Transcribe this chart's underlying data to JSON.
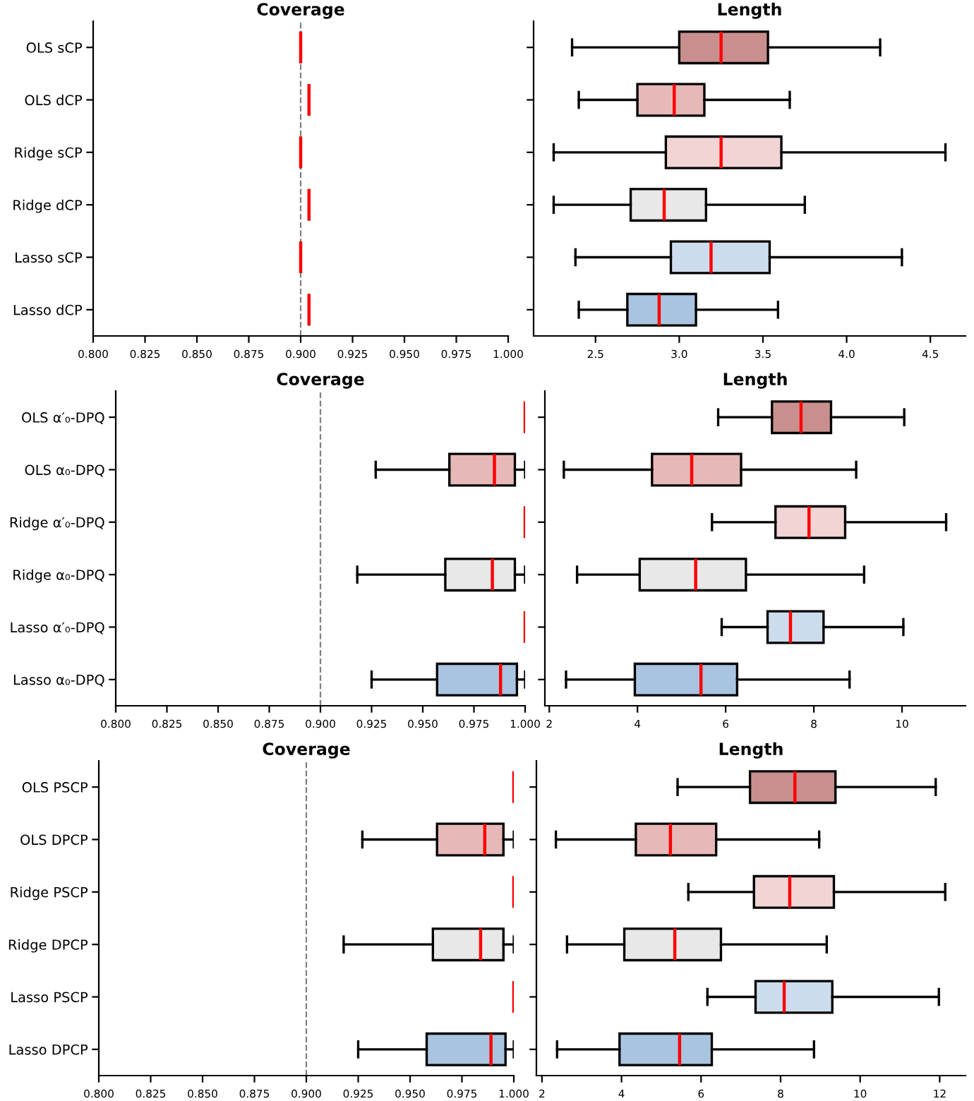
{
  "chart_data": [
    {
      "type": "box",
      "orientation": "horizontal",
      "title": "Coverage",
      "categories": [
        "OLS sCP",
        "OLS dCP",
        "Ridge sCP",
        "Ridge dCP",
        "Lasso sCP",
        "Lasso dCP"
      ],
      "colors": [
        "#000000",
        "#000000",
        "#000000",
        "#000000",
        "#000000",
        "#000000"
      ],
      "boxes": [
        {
          "low": 0.9,
          "q1": 0.9,
          "median": 0.9,
          "q3": 0.9,
          "high": 0.9
        },
        {
          "low": 0.904,
          "q1": 0.904,
          "median": 0.904,
          "q3": 0.904,
          "high": 0.904
        },
        {
          "low": 0.9,
          "q1": 0.9,
          "median": 0.9,
          "q3": 0.9,
          "high": 0.9
        },
        {
          "low": 0.904,
          "q1": 0.904,
          "median": 0.904,
          "q3": 0.904,
          "high": 0.904
        },
        {
          "low": 0.9,
          "q1": 0.9,
          "median": 0.9,
          "q3": 0.9,
          "high": 0.9
        },
        {
          "low": 0.904,
          "q1": 0.904,
          "median": 0.904,
          "q3": 0.904,
          "high": 0.904
        }
      ],
      "xlim": [
        0.8,
        1.0
      ],
      "xticks": [
        {
          "value": 0.8,
          "label": "0.800"
        },
        {
          "value": 0.825,
          "label": "0.825"
        },
        {
          "value": 0.85,
          "label": "0.850"
        },
        {
          "value": 0.875,
          "label": "0.875"
        },
        {
          "value": 0.9,
          "label": "0.900"
        },
        {
          "value": 0.925,
          "label": "0.925"
        },
        {
          "value": 0.95,
          "label": "0.950"
        },
        {
          "value": 0.975,
          "label": "0.975"
        },
        {
          "value": 1.0,
          "label": "1.000"
        }
      ],
      "ref_lines": [
        {
          "axis": "x",
          "value": 0.9,
          "color": "#808080",
          "line_style": "dashed"
        }
      ],
      "grid": false
    },
    {
      "type": "box",
      "orientation": "horizontal",
      "title": "Length",
      "categories": [
        null,
        null,
        null,
        null,
        null,
        null
      ],
      "colors": [
        "#c98f8f",
        "#e6b8b8",
        "#f2d4d4",
        "#e8e8e8",
        "#cddcec",
        "#a9c4e0"
      ],
      "boxes": [
        {
          "low": 2.36,
          "q1": 3.0,
          "median": 3.25,
          "q3": 3.53,
          "high": 4.2
        },
        {
          "low": 2.4,
          "q1": 2.75,
          "median": 2.97,
          "q3": 3.15,
          "high": 3.66
        },
        {
          "low": 2.25,
          "q1": 2.92,
          "median": 3.25,
          "q3": 3.61,
          "high": 4.59
        },
        {
          "low": 2.25,
          "q1": 2.71,
          "median": 2.91,
          "q3": 3.16,
          "high": 3.75
        },
        {
          "low": 2.38,
          "q1": 2.95,
          "median": 3.19,
          "q3": 3.54,
          "high": 4.33
        },
        {
          "low": 2.4,
          "q1": 2.69,
          "median": 2.88,
          "q3": 3.1,
          "high": 3.59
        }
      ],
      "xlim": [
        2.13,
        4.71
      ],
      "xticks": [
        2.5,
        {
          "value": 3.0,
          "label": "3.0"
        },
        3.5,
        {
          "value": 4.0,
          "label": "4.0"
        },
        4.5
      ],
      "grid": false
    },
    {
      "type": "box",
      "orientation": "horizontal",
      "title": "Coverage",
      "categories": [
        "OLS α′₀-DPQ",
        "OLS α₀-DPQ",
        "Ridge α′₀-DPQ",
        "Ridge α₀-DPQ",
        "Lasso α′₀-DPQ",
        "Lasso α₀-DPQ"
      ],
      "colors": [
        "#000000",
        "#e6b8b8",
        "#000000",
        "#e8e8e8",
        "#000000",
        "#a9c4e0"
      ],
      "boxes": [
        {
          "low": 1.0,
          "q1": 1.0,
          "median": 1.0,
          "q3": 1.0,
          "high": 1.0
        },
        {
          "low": 0.927,
          "q1": 0.963,
          "median": 0.985,
          "q3": 0.995,
          "high": 1.0
        },
        {
          "low": 1.0,
          "q1": 1.0,
          "median": 1.0,
          "q3": 1.0,
          "high": 1.0
        },
        {
          "low": 0.918,
          "q1": 0.961,
          "median": 0.984,
          "q3": 0.995,
          "high": 1.0
        },
        {
          "low": 1.0,
          "q1": 1.0,
          "median": 1.0,
          "q3": 1.0,
          "high": 1.0
        },
        {
          "low": 0.925,
          "q1": 0.957,
          "median": 0.988,
          "q3": 0.996,
          "high": 1.0
        }
      ],
      "xlim": [
        0.8,
        1.0
      ],
      "xticks": [
        {
          "value": 0.8,
          "label": "0.800"
        },
        {
          "value": 0.825,
          "label": "0.825"
        },
        {
          "value": 0.85,
          "label": "0.850"
        },
        {
          "value": 0.875,
          "label": "0.875"
        },
        {
          "value": 0.9,
          "label": "0.900"
        },
        {
          "value": 0.925,
          "label": "0.925"
        },
        {
          "value": 0.95,
          "label": "0.950"
        },
        {
          "value": 0.975,
          "label": "0.975"
        },
        {
          "value": 1.0,
          "label": "1.000"
        }
      ],
      "ref_lines": [
        {
          "axis": "x",
          "value": 0.9,
          "color": "#808080",
          "line_style": "dashed"
        }
      ],
      "grid": false
    },
    {
      "type": "box",
      "orientation": "horizontal",
      "title": "Length",
      "categories": [
        null,
        null,
        null,
        null,
        null,
        null
      ],
      "colors": [
        "#c98f8f",
        "#e6b8b8",
        "#f2d4d4",
        "#e8e8e8",
        "#cddcec",
        "#a9c4e0"
      ],
      "boxes": [
        {
          "low": 5.83,
          "q1": 7.05,
          "median": 7.71,
          "q3": 8.39,
          "high": 10.05
        },
        {
          "low": 2.33,
          "q1": 4.33,
          "median": 5.23,
          "q3": 6.35,
          "high": 8.96
        },
        {
          "low": 5.69,
          "q1": 7.13,
          "median": 7.89,
          "q3": 8.71,
          "high": 11.0
        },
        {
          "low": 2.63,
          "q1": 4.05,
          "median": 5.32,
          "q3": 6.46,
          "high": 9.14
        },
        {
          "low": 5.91,
          "q1": 6.95,
          "median": 7.47,
          "q3": 8.22,
          "high": 10.03
        },
        {
          "low": 2.38,
          "q1": 3.94,
          "median": 5.44,
          "q3": 6.26,
          "high": 8.81
        }
      ],
      "xlim": [
        1.9,
        11.44
      ],
      "xticks": [
        2,
        4,
        6,
        8,
        10
      ],
      "grid": false
    },
    {
      "type": "box",
      "orientation": "horizontal",
      "title": "Coverage",
      "categories": [
        "OLS PSCP",
        "OLS DPCP",
        "Ridge PSCP",
        "Ridge DPCP",
        "Lasso PSCP",
        "Lasso DPCP"
      ],
      "colors": [
        "#000000",
        "#e6b8b8",
        "#000000",
        "#e8e8e8",
        "#000000",
        "#a9c4e0"
      ],
      "boxes": [
        {
          "low": 1.0,
          "q1": 1.0,
          "median": 1.0,
          "q3": 1.0,
          "high": 1.0
        },
        {
          "low": 0.927,
          "q1": 0.963,
          "median": 0.986,
          "q3": 0.995,
          "high": 1.0
        },
        {
          "low": 1.0,
          "q1": 1.0,
          "median": 1.0,
          "q3": 1.0,
          "high": 1.0
        },
        {
          "low": 0.918,
          "q1": 0.961,
          "median": 0.984,
          "q3": 0.995,
          "high": 1.0
        },
        {
          "low": 1.0,
          "q1": 1.0,
          "median": 1.0,
          "q3": 1.0,
          "high": 1.0
        },
        {
          "low": 0.925,
          "q1": 0.958,
          "median": 0.989,
          "q3": 0.996,
          "high": 1.0
        }
      ],
      "xlim": [
        0.8,
        1.0
      ],
      "xticks": [
        {
          "value": 0.8,
          "label": "0.800"
        },
        {
          "value": 0.825,
          "label": "0.825"
        },
        {
          "value": 0.85,
          "label": "0.850"
        },
        {
          "value": 0.875,
          "label": "0.875"
        },
        {
          "value": 0.9,
          "label": "0.900"
        },
        {
          "value": 0.925,
          "label": "0.925"
        },
        {
          "value": 0.95,
          "label": "0.950"
        },
        {
          "value": 0.975,
          "label": "0.975"
        },
        {
          "value": 1.0,
          "label": "1.000"
        }
      ],
      "ref_lines": [
        {
          "axis": "x",
          "value": 0.9,
          "color": "#808080",
          "line_style": "dashed"
        }
      ],
      "grid": false
    },
    {
      "type": "box",
      "orientation": "horizontal",
      "title": "Length",
      "categories": [
        null,
        null,
        null,
        null,
        null,
        null
      ],
      "colors": [
        "#c98f8f",
        "#e6b8b8",
        "#f2d4d4",
        "#e8e8e8",
        "#cddcec",
        "#a9c4e0"
      ],
      "boxes": [
        {
          "low": 5.41,
          "q1": 7.23,
          "median": 8.36,
          "q3": 9.38,
          "high": 11.9
        },
        {
          "low": 2.35,
          "q1": 4.36,
          "median": 5.23,
          "q3": 6.38,
          "high": 8.97
        },
        {
          "low": 5.68,
          "q1": 7.33,
          "median": 8.23,
          "q3": 9.34,
          "high": 12.14
        },
        {
          "low": 2.63,
          "q1": 4.07,
          "median": 5.34,
          "q3": 6.5,
          "high": 9.16
        },
        {
          "low": 6.16,
          "q1": 7.37,
          "median": 8.09,
          "q3": 9.3,
          "high": 11.98
        },
        {
          "low": 2.38,
          "q1": 3.95,
          "median": 5.46,
          "q3": 6.27,
          "high": 8.84
        }
      ],
      "xlim": [
        1.86,
        12.65
      ],
      "xticks": [
        2,
        4,
        6,
        8,
        10,
        12
      ],
      "grid": false
    }
  ]
}
